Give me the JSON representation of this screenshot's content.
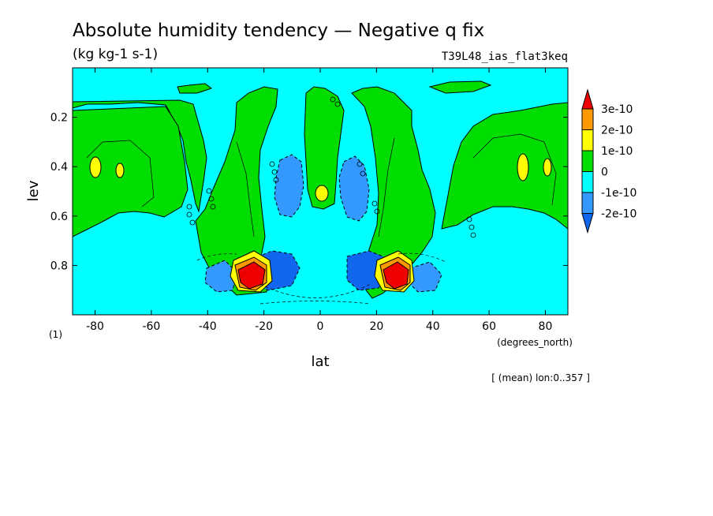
{
  "title": "Absolute humidity tendency — Negative q fix",
  "units": "(kg kg-1 s-1)",
  "run_label": "T39L48_ias_flat3keq",
  "figure_number": "(1)",
  "mean_note": "[ (mean) lon:0..357 ]",
  "colors": {
    "background": "#00ffff",
    "green": "#00dd00",
    "yellow": "#ffff00",
    "orange": "#ff9900",
    "red": "#ee0000",
    "blue_light": "#3399ff",
    "blue_dark": "#1166ee"
  },
  "chart_data": {
    "type": "heatmap",
    "subtype": "filled-contour",
    "title": "Absolute humidity tendency — Negative q fix",
    "subtitle": "(kg kg-1 s-1)",
    "xlabel": "lat",
    "xunits": "(degrees_north)",
    "ylabel": "lev",
    "xlim": [
      -88,
      88
    ],
    "ylim": [
      1.0,
      0.0
    ],
    "y_inverted": true,
    "x_ticks": [
      -80,
      -60,
      -40,
      -20,
      0,
      20,
      40,
      60,
      80
    ],
    "x_tick_labels": [
      "-80",
      "-60",
      "-40",
      "-20",
      "0",
      "20",
      "40",
      "60",
      "80"
    ],
    "y_ticks": [
      0.2,
      0.4,
      0.6,
      0.8
    ],
    "y_tick_labels": [
      "0.2",
      "0.4",
      "0.6",
      "0.8"
    ],
    "colorbar": {
      "labels": [
        "3e-10",
        "2e-10",
        "1e-10",
        "0",
        "-1e-10",
        "-2e-10"
      ],
      "bands": [
        {
          "range": "> 3e-10",
          "color": "#ee0000"
        },
        {
          "range": "2e-10 .. 3e-10",
          "color": "#ff9900"
        },
        {
          "range": "1e-10 .. 2e-10",
          "color": "#ffff00"
        },
        {
          "range": "0 .. 1e-10",
          "color": "#00dd00"
        },
        {
          "range": "-1e-10 .. 0",
          "color": "#00ffff"
        },
        {
          "range": "-2e-10 .. -1e-10",
          "color": "#3399ff"
        },
        {
          "range": "< -2e-10",
          "color": "#1166ee"
        }
      ]
    },
    "features": [
      {
        "kind": "max",
        "lat": -26,
        "lev": 0.84,
        "level": "> 3e-10"
      },
      {
        "kind": "max",
        "lat": 27,
        "lev": 0.84,
        "level": "> 3e-10"
      },
      {
        "kind": "min",
        "lat": -18,
        "lev": 0.85,
        "level": "< -2e-10"
      },
      {
        "kind": "min",
        "lat": 18,
        "lev": 0.85,
        "level": "< -2e-10"
      },
      {
        "kind": "max",
        "lat": 0,
        "lev": 0.5,
        "level": "1e-10 .. 2e-10"
      },
      {
        "kind": "max",
        "lat": -83,
        "lev": 0.42,
        "level": "1e-10 .. 2e-10"
      },
      {
        "kind": "max",
        "lat": 82,
        "lev": 0.42,
        "level": "1e-10 .. 2e-10"
      }
    ]
  }
}
